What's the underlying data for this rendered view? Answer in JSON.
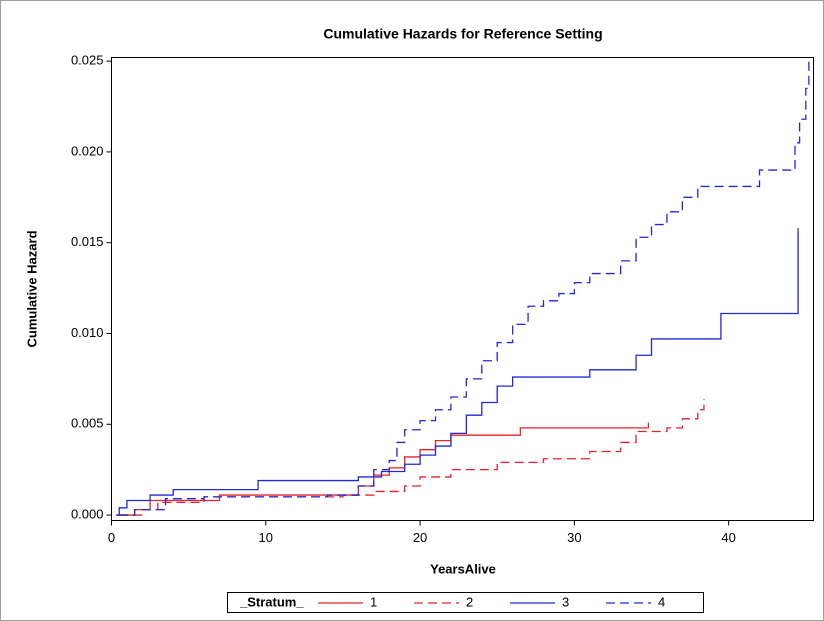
{
  "chart_data": {
    "type": "line",
    "step": true,
    "title": "Cumulative Hazards for Reference Setting",
    "xlabel": "YearsAlive",
    "ylabel": "Cumulative Hazard",
    "legend_title": "_Stratum_",
    "legend": "bottom",
    "xlim": [
      0,
      45.5
    ],
    "xticks": [
      0,
      10,
      20,
      30,
      40
    ],
    "ylim": [
      -0.0003,
      0.0252
    ],
    "yticks": [
      {
        "value": 0,
        "label": "0.000"
      },
      {
        "value": 0.005,
        "label": "0.005"
      },
      {
        "value": 0.01,
        "label": "0.010"
      },
      {
        "value": 0.015,
        "label": "0.015"
      },
      {
        "value": 0.02,
        "label": "0.020"
      },
      {
        "value": 0.025,
        "label": "0.025"
      }
    ],
    "series": [
      {
        "name": "1",
        "color": "#e8202a",
        "line_style": "solid",
        "x": [
          0.3,
          1.5,
          2.5,
          7,
          16,
          17,
          18,
          19,
          20,
          21,
          22,
          26.5,
          34.8
        ],
        "values": [
          0,
          0.0003,
          0.0008,
          0.0011,
          0.0016,
          0.0022,
          0.0026,
          0.0032,
          0.0036,
          0.0041,
          0.0044,
          0.0048,
          0.0051
        ]
      },
      {
        "name": "2",
        "color": "#e8202a",
        "line_style": "dashed",
        "x": [
          0.5,
          2,
          3,
          6,
          15,
          17,
          19,
          20,
          22,
          25,
          28,
          31,
          33,
          34,
          36,
          37,
          38,
          38.4
        ],
        "values": [
          0,
          0.0003,
          0.0007,
          0.001,
          0.0011,
          0.0013,
          0.0016,
          0.0021,
          0.0025,
          0.0029,
          0.0031,
          0.0035,
          0.004,
          0.0046,
          0.0048,
          0.0053,
          0.0058,
          0.0064
        ]
      },
      {
        "name": "3",
        "color": "#1f2ad6",
        "line_style": "solid",
        "x": [
          0.3,
          0.5,
          1,
          2.5,
          4,
          9.5,
          16,
          17.5,
          19,
          20,
          21,
          22,
          23,
          24,
          25,
          26,
          31,
          34,
          35,
          39.5,
          44.5
        ],
        "values": [
          0,
          0.0004,
          0.0008,
          0.0011,
          0.0014,
          0.0019,
          0.0021,
          0.0024,
          0.0028,
          0.0033,
          0.0038,
          0.0045,
          0.0055,
          0.0062,
          0.0071,
          0.0076,
          0.008,
          0.0088,
          0.0097,
          0.0111,
          0.0158
        ]
      },
      {
        "name": "4",
        "color": "#1f2ad6",
        "line_style": "dashed",
        "x": [
          0.5,
          1.5,
          3.5,
          6,
          14,
          16,
          17,
          18,
          18.5,
          19,
          20,
          21,
          22,
          23,
          24,
          25,
          26,
          27,
          28,
          29,
          30,
          31,
          33,
          34,
          35,
          36,
          37,
          38,
          42,
          44.3,
          44.6,
          45,
          45.2
        ],
        "values": [
          0,
          0.0003,
          0.0009,
          0.001,
          0.0011,
          0.0016,
          0.0025,
          0.003,
          0.004,
          0.0047,
          0.0052,
          0.0058,
          0.0065,
          0.0075,
          0.0085,
          0.0095,
          0.0105,
          0.0115,
          0.0118,
          0.0122,
          0.0128,
          0.0133,
          0.014,
          0.0153,
          0.016,
          0.0167,
          0.0175,
          0.0181,
          0.019,
          0.0205,
          0.0218,
          0.0235,
          0.025
        ]
      }
    ]
  }
}
